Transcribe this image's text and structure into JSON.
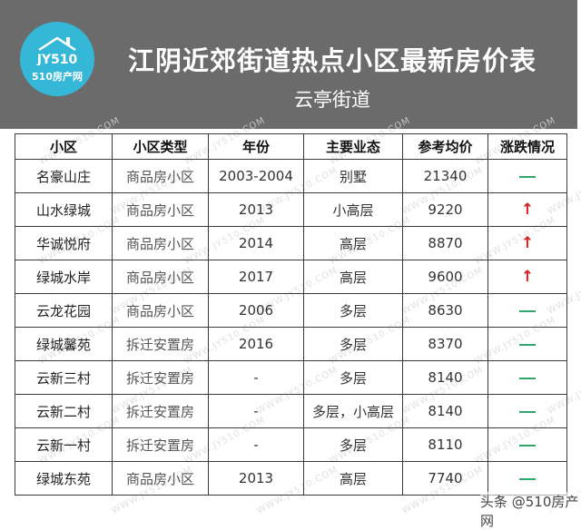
{
  "header": {
    "logo": {
      "mark": "JY510",
      "brand": "510房产网",
      "color": "#35b8d7"
    },
    "title": "江阴近郊街道热点小区最新房价表",
    "subtitle": "云亭街道",
    "background": "#6b6b6b"
  },
  "table": {
    "columns": [
      "小区",
      "小区类型",
      "年份",
      "主要业态",
      "参考均价",
      "涨跌情况"
    ],
    "rows": [
      {
        "name": "名豪山庄",
        "type": "商品房小区",
        "year": "2003-2004",
        "form": "别墅",
        "price": "21340",
        "trend": "flat"
      },
      {
        "name": "山水绿城",
        "type": "商品房小区",
        "year": "2013",
        "form": "小高层",
        "price": "9220",
        "trend": "up"
      },
      {
        "name": "华诚悦府",
        "type": "商品房小区",
        "year": "2014",
        "form": "高层",
        "price": "8870",
        "trend": "up"
      },
      {
        "name": "绿城水岸",
        "type": "商品房小区",
        "year": "2017",
        "form": "高层",
        "price": "9600",
        "trend": "up"
      },
      {
        "name": "云龙花园",
        "type": "商品房小区",
        "year": "2006",
        "form": "多层",
        "price": "8630",
        "trend": "flat"
      },
      {
        "name": "绿城馨苑",
        "type": "拆迁安置房",
        "year": "2016",
        "form": "多层",
        "price": "8370",
        "trend": "flat"
      },
      {
        "name": "云新三村",
        "type": "拆迁安置房",
        "year": "-",
        "form": "多层",
        "price": "8140",
        "trend": "flat"
      },
      {
        "name": "云新二村",
        "type": "拆迁安置房",
        "year": "-",
        "form": "多层，小高层",
        "price": "8140",
        "trend": "flat"
      },
      {
        "name": "云新一村",
        "type": "拆迁安置房",
        "year": "-",
        "form": "多层",
        "price": "8110",
        "trend": "flat"
      },
      {
        "name": "绿城东苑",
        "type": "商品房小区",
        "year": "2013",
        "form": "高层",
        "price": "7740",
        "trend": "flat"
      }
    ],
    "trend_symbols": {
      "up": "↑",
      "flat": "—"
    },
    "trend_colors": {
      "up": "#d42020",
      "flat": "#2fa86a"
    }
  },
  "watermark": {
    "text": "WWW.JY510.COM"
  },
  "footer": {
    "credit": "头条 @510房产网"
  }
}
